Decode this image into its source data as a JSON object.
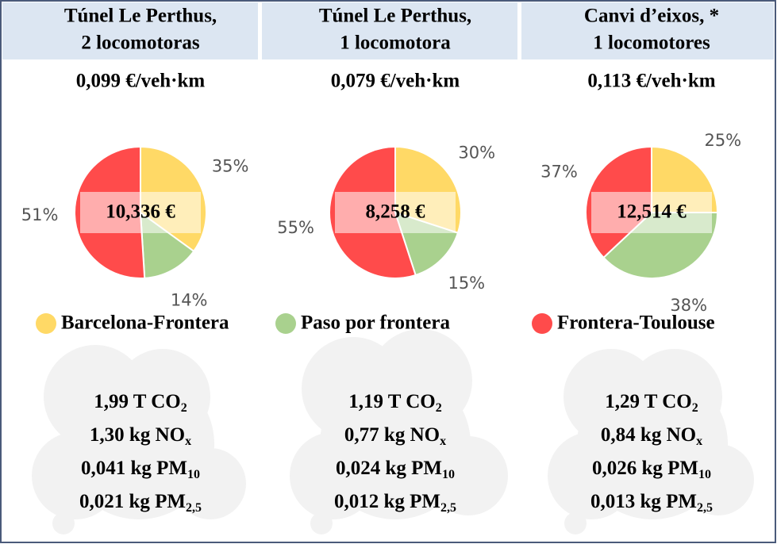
{
  "columns": [
    {
      "title": [
        "Túnel Le Perthus,",
        "2 locomotoras"
      ],
      "cost": "0,099 €/veh·km",
      "emissions": [
        {
          "text": "1,99 T CO",
          "sub": "2"
        },
        {
          "text": "1,30 kg NO",
          "sub": "x"
        },
        {
          "text": "0,041 kg PM",
          "sub": "10"
        },
        {
          "text": "0,021 kg PM",
          "sub": "2,5"
        }
      ]
    },
    {
      "title": [
        "Túnel Le Perthus,",
        "1 locomotora"
      ],
      "cost": "0,079 €/veh·km",
      "emissions": [
        {
          "text": "1,19 T CO",
          "sub": "2"
        },
        {
          "text": "0,77 kg NO",
          "sub": "x"
        },
        {
          "text": "0,024 kg PM",
          "sub": "10"
        },
        {
          "text": "0,012 kg PM",
          "sub": "2,5"
        }
      ]
    },
    {
      "title": [
        "Canvi d’eixos, *",
        "1 locomotores"
      ],
      "cost": "0,113  €/veh·km",
      "emissions": [
        {
          "text": "1,29 T CO",
          "sub": "2"
        },
        {
          "text": "0,84  kg NO",
          "sub": "x"
        },
        {
          "text": "0,026 kg PM",
          "sub": "10"
        },
        {
          "text": "0,013 kg PM",
          "sub": "2,5"
        }
      ]
    }
  ],
  "legend": {
    "labels": [
      "Barcelona-Frontera",
      "Paso por frontera",
      "Frontera-Toulouse"
    ],
    "colors": [
      "#ffd966",
      "#a9d18e",
      "#ff4b4b"
    ]
  },
  "chart_data": [
    {
      "type": "pie",
      "values": [
        35,
        14,
        51
      ],
      "value_labels": [
        "35%",
        "14%",
        "51%"
      ],
      "annotation": "10,336 €"
    },
    {
      "type": "pie",
      "values": [
        30,
        15,
        55
      ],
      "value_labels": [
        "30%",
        "15%",
        "55%"
      ],
      "annotation": "8,258 €"
    },
    {
      "type": "pie",
      "values": [
        25,
        38,
        37
      ],
      "value_labels": [
        "25%",
        "38%",
        "37%"
      ],
      "annotation": "12,514 €"
    }
  ]
}
